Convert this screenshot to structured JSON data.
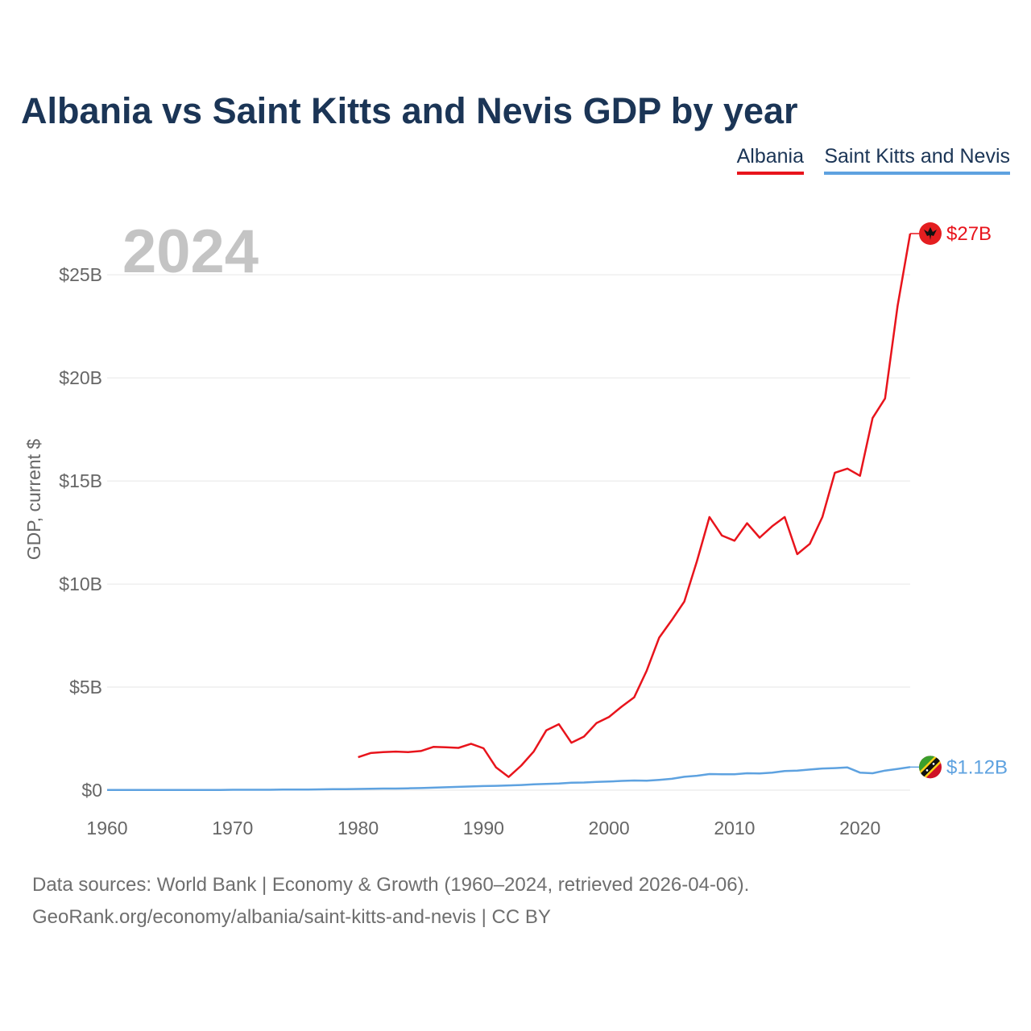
{
  "colors": {
    "albania": "#e8141c",
    "skn": "#5ea2e0",
    "title": "#1b3556",
    "grid": "#e6e6e6",
    "axis_text": "#666666",
    "year_watermark": "#c4c4c4"
  },
  "chart_data": {
    "type": "line",
    "title": "Albania vs Saint Kitts and Nevis GDP by year",
    "ylabel": "GDP, current $",
    "xlabel": "",
    "xlim": [
      1960,
      2024
    ],
    "ylim": [
      0,
      27
    ],
    "y_unit": "billion current US$",
    "year_label": "2024",
    "legend_position": "top-right",
    "grid": true,
    "x_ticks": [
      1960,
      1970,
      1980,
      1990,
      2000,
      2010,
      2020
    ],
    "x_tick_labels": [
      "1960",
      "1970",
      "1980",
      "1990",
      "2000",
      "2010",
      "2020"
    ],
    "y_ticks": [
      0,
      5,
      10,
      15,
      20,
      25
    ],
    "y_tick_labels": [
      "$0",
      "$5B",
      "$10B",
      "$15B",
      "$20B",
      "$25B"
    ],
    "series": [
      {
        "name": "Albania",
        "end_label": "$27B",
        "x": [
          1980,
          1981,
          1982,
          1983,
          1984,
          1985,
          1986,
          1987,
          1988,
          1989,
          1990,
          1991,
          1992,
          1993,
          1994,
          1995,
          1996,
          1997,
          1998,
          1999,
          2000,
          2001,
          2002,
          2003,
          2004,
          2005,
          2006,
          2007,
          2008,
          2009,
          2010,
          2011,
          2012,
          2013,
          2014,
          2015,
          2016,
          2017,
          2018,
          2019,
          2020,
          2021,
          2022,
          2023,
          2024
        ],
        "values": [
          1.6,
          1.8,
          1.85,
          1.87,
          1.85,
          1.9,
          2.1,
          2.08,
          2.05,
          2.25,
          2.03,
          1.1,
          0.64,
          1.19,
          1.88,
          2.9,
          3.2,
          2.3,
          2.6,
          3.25,
          3.55,
          4.05,
          4.5,
          5.8,
          7.4,
          8.25,
          9.15,
          11.1,
          13.25,
          12.35,
          12.1,
          12.95,
          12.25,
          12.8,
          13.25,
          11.45,
          11.95,
          13.25,
          15.4,
          15.6,
          15.25,
          18.05,
          19.0,
          23.5,
          27.0
        ]
      },
      {
        "name": "Saint Kitts and Nevis",
        "end_label": "$1.12B",
        "x": [
          1960,
          1961,
          1962,
          1963,
          1964,
          1965,
          1966,
          1967,
          1968,
          1969,
          1970,
          1971,
          1972,
          1973,
          1974,
          1975,
          1976,
          1977,
          1978,
          1979,
          1980,
          1981,
          1982,
          1983,
          1984,
          1985,
          1986,
          1987,
          1988,
          1989,
          1990,
          1991,
          1992,
          1993,
          1994,
          1995,
          1996,
          1997,
          1998,
          1999,
          2000,
          2001,
          2002,
          2003,
          2004,
          2005,
          2006,
          2007,
          2008,
          2009,
          2010,
          2011,
          2012,
          2013,
          2014,
          2015,
          2016,
          2017,
          2018,
          2019,
          2020,
          2021,
          2022,
          2023,
          2024
        ],
        "values": [
          0.01,
          0.01,
          0.01,
          0.01,
          0.01,
          0.01,
          0.01,
          0.01,
          0.01,
          0.01,
          0.02,
          0.02,
          0.02,
          0.02,
          0.03,
          0.03,
          0.03,
          0.04,
          0.05,
          0.05,
          0.06,
          0.07,
          0.08,
          0.08,
          0.09,
          0.1,
          0.12,
          0.14,
          0.16,
          0.18,
          0.2,
          0.21,
          0.23,
          0.25,
          0.28,
          0.3,
          0.32,
          0.36,
          0.37,
          0.4,
          0.42,
          0.45,
          0.47,
          0.46,
          0.5,
          0.55,
          0.65,
          0.7,
          0.78,
          0.77,
          0.77,
          0.82,
          0.81,
          0.85,
          0.93,
          0.95,
          1.0,
          1.05,
          1.07,
          1.1,
          0.85,
          0.82,
          0.95,
          1.03,
          1.12
        ]
      }
    ]
  },
  "footer": {
    "source": "Data sources: World Bank | Economy & Growth (1960–2024, retrieved 2026-04-06).",
    "credit": "GeoRank.org/economy/albania/saint-kitts-and-nevis | CC BY"
  }
}
